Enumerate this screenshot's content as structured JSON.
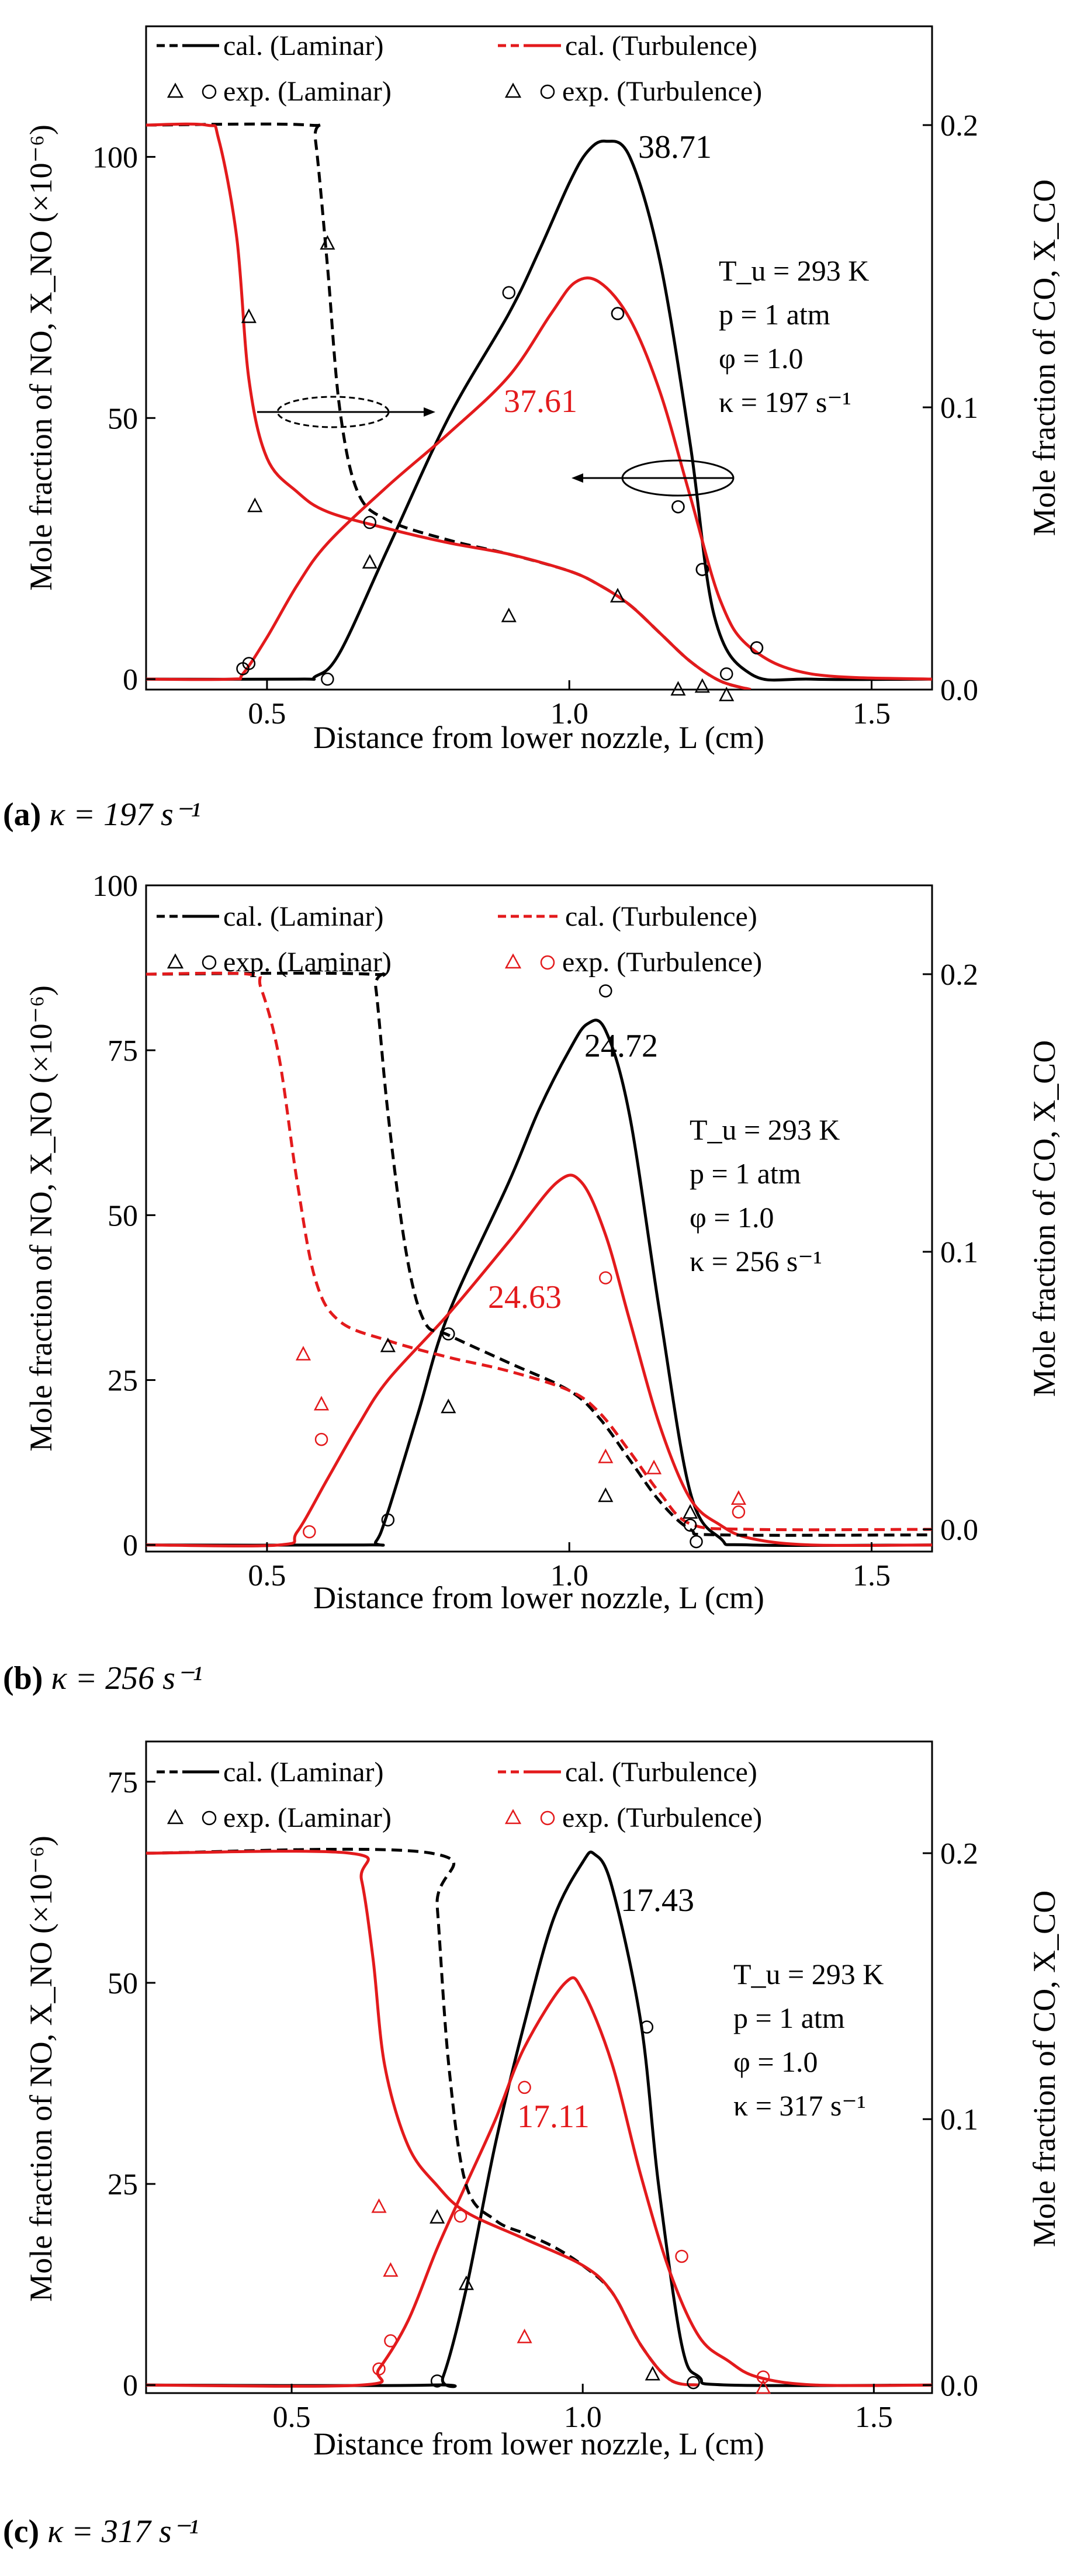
{
  "chart_data": [
    {
      "type": "line",
      "caption_id": "(a)",
      "caption_rest": "κ = 197 s⁻¹",
      "xlabel": "Distance from lower nozzle, L (cm)",
      "ylabel_left": "Mole fraction of NO, X_NO (×10⁻⁶)",
      "ylabel_right": "Mole fraction of CO, X_CO",
      "xlim": [
        0.3,
        1.6
      ],
      "ylim_left": [
        -2,
        125
      ],
      "ylim_right": [
        0.0,
        0.235
      ],
      "x_ticks": [
        "0.5",
        "1.0",
        "1.5"
      ],
      "y_left_ticks": [
        "0",
        "50",
        "100"
      ],
      "y_right_ticks": [
        "0.0",
        "0.1",
        "0.2"
      ],
      "legend": {
        "cal_laminar": "cal. (Laminar)",
        "cal_turbulence": "cal. (Turbulence)",
        "exp_laminar": "exp. (Laminar)",
        "exp_turbulence": "exp. (Turbulence)"
      },
      "conditions": [
        "T_u = 293 K",
        "p = 1 atm",
        "φ = 1.0",
        "κ = 197 s⁻¹"
      ],
      "peak_laminar": "38.71",
      "peak_turbulence": "37.61",
      "series": [
        {
          "name": "cal. NO (Laminar)",
          "axis": "left",
          "color": "#000000",
          "dash": false,
          "x": [
            0.3,
            0.55,
            0.58,
            0.62,
            0.7,
            0.8,
            0.9,
            0.95,
            1.0,
            1.03,
            1.06,
            1.1,
            1.15,
            1.2,
            1.24,
            1.3,
            1.4,
            1.6
          ],
          "y": [
            0,
            0,
            0.5,
            5,
            25,
            50,
            70,
            82,
            95,
            101,
            103,
            100,
            80,
            45,
            12,
            1,
            0,
            0
          ]
        },
        {
          "name": "cal. NO (Turbulence)",
          "axis": "left",
          "color": "#e31a1c",
          "dash": false,
          "x": [
            0.3,
            0.44,
            0.46,
            0.5,
            0.55,
            0.6,
            0.7,
            0.8,
            0.9,
            0.97,
            1.01,
            1.05,
            1.1,
            1.15,
            1.2,
            1.25,
            1.3,
            1.4,
            1.6
          ],
          "y": [
            0,
            0,
            1,
            8,
            18,
            26,
            37,
            47,
            58,
            70,
            76,
            76,
            69,
            55,
            35,
            15,
            6,
            1,
            0
          ]
        },
        {
          "name": "cal. CO (Laminar)",
          "axis": "right",
          "color": "#000000",
          "dash": true,
          "x": [
            0.3,
            0.57,
            0.58,
            0.6,
            0.62,
            0.65,
            0.7,
            0.8,
            0.9,
            1.0,
            1.05,
            1.1,
            1.15,
            1.2,
            1.25,
            1.3
          ],
          "y": [
            0.2,
            0.2,
            0.195,
            0.15,
            0.1,
            0.07,
            0.06,
            0.053,
            0.048,
            0.042,
            0.037,
            0.03,
            0.02,
            0.01,
            0.003,
            0.0
          ]
        },
        {
          "name": "cal. CO (Turbulence)",
          "axis": "right",
          "color": "#e31a1c",
          "dash": false,
          "x": [
            0.3,
            0.4,
            0.42,
            0.45,
            0.47,
            0.5,
            0.55,
            0.6,
            0.7,
            0.8,
            0.9,
            1.0,
            1.05,
            1.1,
            1.15,
            1.2,
            1.25,
            1.3
          ],
          "y": [
            0.2,
            0.2,
            0.195,
            0.16,
            0.11,
            0.082,
            0.07,
            0.063,
            0.057,
            0.052,
            0.048,
            0.042,
            0.037,
            0.03,
            0.02,
            0.01,
            0.003,
            0.0
          ]
        },
        {
          "name": "exp. NO (Laminar)",
          "axis": "left",
          "color": "#000000",
          "marker": "circle",
          "x": [
            0.6,
            0.9,
            1.08,
            1.18,
            1.22,
            1.26,
            1.31
          ],
          "y": [
            0,
            74,
            70,
            33,
            21,
            1,
            6
          ]
        },
        {
          "name": "exp. CO (Laminar)",
          "axis": "right",
          "color": "#000000",
          "marker": "triangle",
          "x": [
            0.47,
            0.48,
            0.6,
            0.67,
            0.9,
            1.08,
            1.18,
            1.22,
            1.26
          ],
          "y": [
            0.132,
            0.065,
            0.158,
            0.045,
            0.026,
            0.033,
            0.0,
            0.001,
            -0.002
          ]
        },
        {
          "name": "exp. NO (Turbulence)",
          "axis": "left",
          "color": "#000000",
          "marker": "circle",
          "x": [
            0.46,
            0.47,
            0.67,
            1.08,
            1.18,
            1.22,
            1.31
          ],
          "y": [
            2,
            3,
            30,
            70,
            33,
            21,
            6
          ]
        }
      ]
    },
    {
      "type": "line",
      "caption_id": "(b)",
      "caption_rest": "κ = 256 s⁻¹",
      "xlabel": "Distance from lower nozzle, L (cm)",
      "ylabel_left": "Mole fraction of NO, X_NO (×10⁻⁶)",
      "ylabel_right": "Mole fraction of CO, X_CO",
      "xlim": [
        0.3,
        1.6
      ],
      "ylim_left": [
        -1,
        100
      ],
      "ylim_right": [
        -0.008,
        0.232
      ],
      "x_ticks": [
        "0.5",
        "1.0",
        "1.5"
      ],
      "y_left_ticks": [
        "0",
        "25",
        "50",
        "75",
        "100"
      ],
      "y_right_ticks": [
        "0.0",
        "0.1",
        "0.2"
      ],
      "legend": {
        "cal_laminar": "cal. (Laminar)",
        "cal_turbulence": "cal. (Turbulence)",
        "exp_laminar": "exp. (Laminar)",
        "exp_turbulence": "exp. (Turbulence)"
      },
      "conditions": [
        "T_u = 293 K",
        "p = 1 atm",
        "φ = 1.0",
        "κ = 256 s⁻¹"
      ],
      "peak_laminar": "24.72",
      "peak_turbulence": "24.63",
      "series": [
        {
          "name": "cal. NO (Laminar)",
          "axis": "left",
          "color": "#000000",
          "dash": false,
          "x": [
            0.3,
            0.66,
            0.68,
            0.7,
            0.75,
            0.8,
            0.9,
            0.95,
            1.0,
            1.03,
            1.06,
            1.1,
            1.15,
            1.2,
            1.25,
            1.3,
            1.6
          ],
          "y": [
            0,
            0,
            0.5,
            5,
            20,
            35,
            55,
            66,
            75,
            79,
            78,
            65,
            35,
            8,
            1,
            0,
            0
          ]
        },
        {
          "name": "cal. NO (Turbulence)",
          "axis": "left",
          "color": "#e31a1c",
          "dash": false,
          "x": [
            0.3,
            0.52,
            0.55,
            0.6,
            0.65,
            0.7,
            0.8,
            0.9,
            0.98,
            1.02,
            1.06,
            1.1,
            1.15,
            1.2,
            1.25,
            1.3,
            1.4,
            1.6
          ],
          "y": [
            0,
            0,
            2,
            10,
            18,
            25,
            35,
            46,
            55,
            55,
            47,
            34,
            18,
            7,
            3,
            1,
            0,
            0
          ]
        },
        {
          "name": "cal. CO (Laminar)",
          "axis": "right",
          "color": "#000000",
          "dash": true,
          "x": [
            0.3,
            0.67,
            0.68,
            0.7,
            0.73,
            0.76,
            0.8,
            0.9,
            1.0,
            1.05,
            1.1,
            1.15,
            1.2,
            1.25,
            1.6
          ],
          "y": [
            0.2,
            0.2,
            0.195,
            0.15,
            0.1,
            0.075,
            0.07,
            0.06,
            0.05,
            0.04,
            0.025,
            0.01,
            0.0,
            -0.002,
            -0.002
          ]
        },
        {
          "name": "cal. CO (Turbulence)",
          "axis": "right",
          "color": "#e31a1c",
          "dash": true,
          "x": [
            0.3,
            0.47,
            0.49,
            0.52,
            0.55,
            0.58,
            0.62,
            0.7,
            0.8,
            0.9,
            1.0,
            1.05,
            1.1,
            1.15,
            1.2,
            1.3,
            1.6
          ],
          "y": [
            0.2,
            0.2,
            0.195,
            0.17,
            0.125,
            0.09,
            0.075,
            0.068,
            0.062,
            0.057,
            0.05,
            0.042,
            0.028,
            0.013,
            0.002,
            0.0,
            0.0
          ]
        },
        {
          "name": "exp. NO (Laminar)",
          "axis": "left",
          "color": "#000000",
          "marker": "circle",
          "x": [
            0.7,
            0.8,
            1.06,
            1.2,
            1.21
          ],
          "y": [
            3.8,
            32,
            84,
            3,
            0.5
          ]
        },
        {
          "name": "exp. CO (Laminar)",
          "axis": "right",
          "color": "#000000",
          "marker": "triangle",
          "x": [
            0.7,
            0.8,
            1.06,
            1.2
          ],
          "y": [
            0.066,
            0.044,
            0.012,
            0.006
          ]
        },
        {
          "name": "exp. NO (Turbulence)",
          "axis": "left",
          "color": "#e31a1c",
          "marker": "circle",
          "x": [
            0.57,
            0.59,
            1.06,
            1.28
          ],
          "y": [
            2,
            16,
            40.5,
            5
          ]
        },
        {
          "name": "exp. CO (Turbulence)",
          "axis": "right",
          "color": "#e31a1c",
          "marker": "triangle",
          "x": [
            0.56,
            0.59,
            1.06,
            1.14,
            1.28
          ],
          "y": [
            0.063,
            0.045,
            0.026,
            0.022,
            0.011
          ]
        }
      ]
    },
    {
      "type": "line",
      "caption_id": "(c)",
      "caption_rest": "κ = 317 s⁻¹",
      "xlabel": "Distance from lower nozzle, L (cm)",
      "ylabel_left": "Mole fraction of NO, X_NO (×10⁻⁶)",
      "ylabel_right": "Mole fraction of CO, X_CO",
      "xlim": [
        0.25,
        1.6
      ],
      "ylim_left": [
        -1,
        80
      ],
      "ylim_right": [
        -0.003,
        0.242
      ],
      "x_ticks": [
        "0.5",
        "1.0",
        "1.5"
      ],
      "y_left_ticks": [
        "0",
        "25",
        "50",
        "75"
      ],
      "y_right_ticks": [
        "0.0",
        "0.1",
        "0.2"
      ],
      "legend": {
        "cal_laminar": "cal. (Laminar)",
        "cal_turbulence": "cal. (Turbulence)",
        "exp_laminar": "exp. (Laminar)",
        "exp_turbulence": "exp. (Turbulence)"
      },
      "conditions": [
        "T_u = 293 K",
        "p = 1 atm",
        "φ = 1.0",
        "κ = 317 s⁻¹"
      ],
      "peak_laminar": "17.43",
      "peak_turbulence": "17.11",
      "series": [
        {
          "name": "cal. NO (Laminar)",
          "axis": "left",
          "color": "#000000",
          "dash": false,
          "x": [
            0.25,
            0.74,
            0.76,
            0.8,
            0.85,
            0.9,
            0.95,
            1.0,
            1.02,
            1.05,
            1.1,
            1.13,
            1.17,
            1.2,
            1.25,
            1.6
          ],
          "y": [
            0,
            0,
            1,
            12,
            30,
            45,
            58,
            65,
            66,
            62,
            45,
            25,
            5,
            1,
            0,
            0
          ]
        },
        {
          "name": "cal. NO (Turbulence)",
          "axis": "left",
          "color": "#e31a1c",
          "dash": false,
          "x": [
            0.25,
            0.62,
            0.65,
            0.7,
            0.75,
            0.8,
            0.85,
            0.9,
            0.97,
            1.0,
            1.05,
            1.1,
            1.15,
            1.2,
            1.25,
            1.3,
            1.4,
            1.6
          ],
          "y": [
            0,
            0,
            2,
            8,
            17,
            25,
            33,
            42,
            50,
            49,
            40,
            26,
            14,
            6,
            3,
            1,
            0,
            0
          ]
        },
        {
          "name": "cal. CO (Laminar)",
          "axis": "right",
          "color": "#000000",
          "dash": true,
          "x": [
            0.25,
            0.74,
            0.75,
            0.77,
            0.8,
            0.85,
            0.9,
            0.95,
            1.0,
            1.05,
            1.1,
            1.15,
            1.2
          ],
          "y": [
            0.2,
            0.2,
            0.18,
            0.12,
            0.075,
            0.062,
            0.057,
            0.052,
            0.045,
            0.035,
            0.015,
            0.002,
            0.0
          ]
        },
        {
          "name": "cal. CO (Turbulence)",
          "axis": "right",
          "color": "#e31a1c",
          "dash": false,
          "x": [
            0.25,
            0.6,
            0.62,
            0.64,
            0.66,
            0.7,
            0.75,
            0.8,
            0.9,
            1.0,
            1.05,
            1.1,
            1.15,
            1.2
          ],
          "y": [
            0.2,
            0.2,
            0.19,
            0.16,
            0.12,
            0.09,
            0.075,
            0.065,
            0.055,
            0.045,
            0.035,
            0.015,
            0.002,
            0.0
          ]
        },
        {
          "name": "exp. NO (Laminar)",
          "axis": "left",
          "color": "#000000",
          "marker": "circle",
          "x": [
            0.75,
            1.11,
            1.19
          ],
          "y": [
            0.5,
            44.5,
            0.3
          ]
        },
        {
          "name": "exp. CO (Laminar)",
          "axis": "right",
          "color": "#000000",
          "marker": "triangle",
          "x": [
            0.75,
            0.8,
            1.12
          ],
          "y": [
            0.063,
            0.038,
            0.004
          ]
        },
        {
          "name": "exp. NO (Turbulence)",
          "axis": "left",
          "color": "#e31a1c",
          "marker": "circle",
          "x": [
            0.65,
            0.67,
            0.79,
            0.9,
            1.17,
            1.31
          ],
          "y": [
            2,
            5.5,
            21,
            37,
            16,
            1
          ]
        },
        {
          "name": "exp. CO (Turbulence)",
          "axis": "right",
          "color": "#e31a1c",
          "marker": "triangle",
          "x": [
            0.65,
            0.67,
            0.9,
            1.31
          ],
          "y": [
            0.067,
            0.043,
            0.018,
            -0.001
          ]
        }
      ]
    }
  ]
}
